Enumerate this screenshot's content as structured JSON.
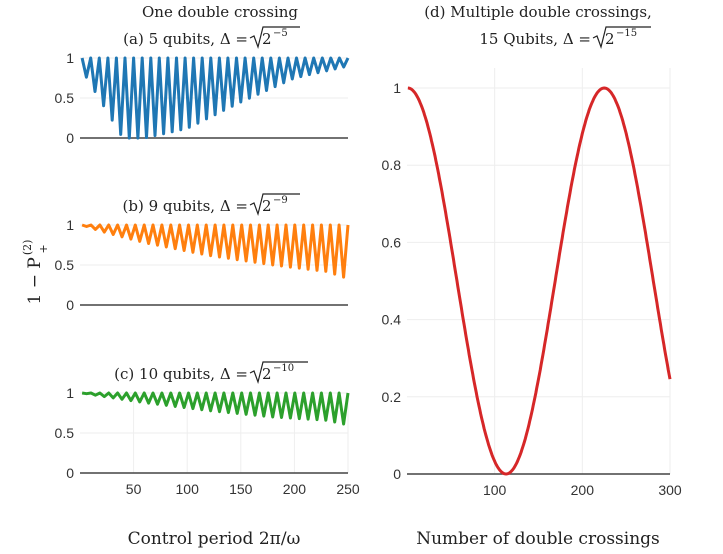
{
  "figure": {
    "ylabel": "1 − P",
    "ylabel_super": "(2)",
    "ylabel_sub": "+",
    "left_xlabel": "Control period 2π/ω",
    "right_xlabel": "Number of double crossings",
    "left_header": "One double crossing"
  },
  "chart_data": [
    {
      "id": "a",
      "type": "line",
      "title": "(a) 5 qubits, Δ = √2⁻⁵",
      "title_text": "(a) 5 qubits, Δ = ",
      "title_exp": "−5",
      "color": "#1f77b4",
      "xlim": [
        0,
        250
      ],
      "ylim": [
        0,
        1
      ],
      "xticks": [],
      "yticks": [
        0,
        0.5,
        1
      ],
      "ytick_labels": [
        "0",
        "0.5",
        "1"
      ],
      "model": {
        "x_start": 2,
        "x_end": 250,
        "n_oscillations": 31,
        "min_profile": [
          [
            2,
            0.85
          ],
          [
            40,
            0.0
          ],
          [
            60,
            0.0
          ],
          [
            100,
            0.12
          ],
          [
            150,
            0.45
          ],
          [
            200,
            0.75
          ],
          [
            250,
            0.9
          ]
        ]
      },
      "series": [
        {
          "name": "",
          "x_range": [
            2,
            250
          ],
          "y_range": [
            0,
            1
          ]
        }
      ]
    },
    {
      "id": "b",
      "type": "line",
      "title": "(b) 9 qubits, Δ = √2⁻⁹",
      "title_text": "(b) 9 qubits, Δ = ",
      "title_exp": "−9",
      "color": "#ff7f0e",
      "xlim": [
        0,
        250
      ],
      "ylim": [
        0,
        1
      ],
      "xticks": [],
      "yticks": [
        0,
        0.5,
        1
      ],
      "ytick_labels": [
        "0",
        "0.5",
        "1"
      ],
      "model": {
        "x_start": 2,
        "x_end": 250,
        "n_oscillations": 30,
        "min_profile": [
          [
            2,
            1.0
          ],
          [
            20,
            0.92
          ],
          [
            60,
            0.78
          ],
          [
            120,
            0.62
          ],
          [
            180,
            0.5
          ],
          [
            230,
            0.42
          ],
          [
            250,
            0.33
          ]
        ]
      },
      "series": [
        {
          "name": "",
          "x_range": [
            2,
            250
          ],
          "y_range": [
            0.33,
            1
          ]
        }
      ]
    },
    {
      "id": "c",
      "type": "line",
      "title": "(c) 10 qubits, Δ = √2⁻¹⁰",
      "title_text": "(c) 10 qubits, Δ = ",
      "title_exp": "−10",
      "color": "#2ca02c",
      "xlim": [
        0,
        250
      ],
      "ylim": [
        0,
        1
      ],
      "xticks": [
        50,
        100,
        150,
        200,
        250
      ],
      "yticks": [
        0,
        0.5,
        1
      ],
      "ytick_labels": [
        "0",
        "0.5",
        "1"
      ],
      "model": {
        "x_start": 2,
        "x_end": 250,
        "n_oscillations": 30,
        "min_profile": [
          [
            2,
            1.0
          ],
          [
            20,
            0.96
          ],
          [
            60,
            0.88
          ],
          [
            120,
            0.78
          ],
          [
            180,
            0.7
          ],
          [
            230,
            0.66
          ],
          [
            250,
            0.6
          ]
        ]
      },
      "series": [
        {
          "name": "",
          "x_range": [
            2,
            250
          ],
          "y_range": [
            0.6,
            1
          ]
        }
      ]
    },
    {
      "id": "d",
      "type": "line",
      "title": "(d) Multiple double crossings, 15 Qubits, Δ = √2⁻¹⁵",
      "title_line1": "(d) Multiple double crossings,",
      "title_line2": "15 Qubits, Δ = ",
      "title_exp": "−15",
      "color": "#d62728",
      "xlabel": "Number of double crossings",
      "xlim": [
        0,
        300
      ],
      "ylim": [
        0,
        1.05
      ],
      "xticks": [
        100,
        200,
        300
      ],
      "yticks": [
        0,
        0.2,
        0.4,
        0.6,
        0.8,
        1
      ],
      "ytick_labels": [
        "0",
        "0.2",
        "0.4",
        "0.6",
        "0.8",
        "1"
      ],
      "model": {
        "formula": "cos^2(pi*(x-1)/224)",
        "x_start": 1,
        "x_end": 300,
        "period": 224
      },
      "series": [
        {
          "name": "",
          "x_range": [
            1,
            300
          ],
          "y_range": [
            0,
            1
          ]
        }
      ]
    }
  ]
}
